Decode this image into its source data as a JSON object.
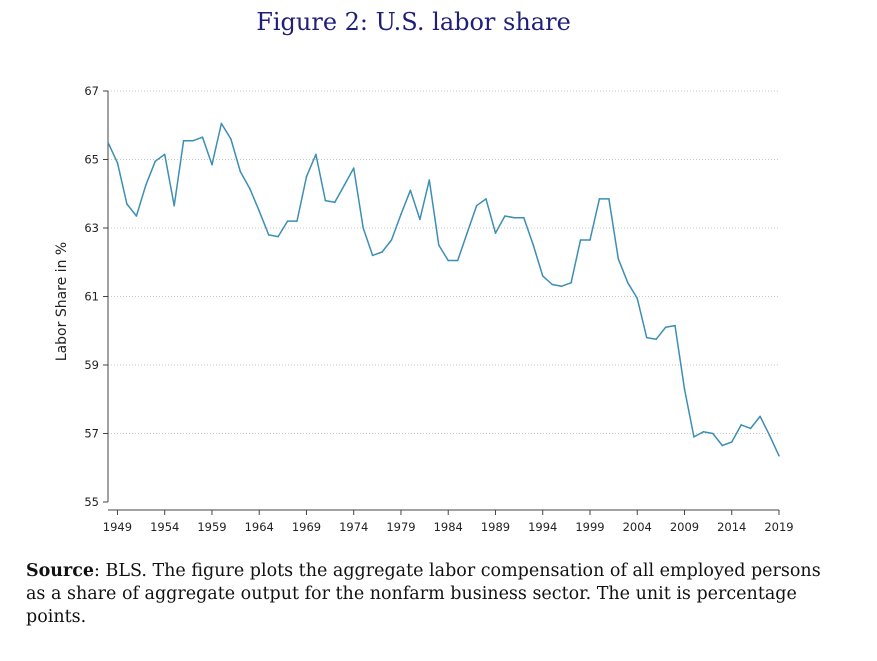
{
  "figure": {
    "title": "Figure 2: U.S. labor share"
  },
  "caption": {
    "source_label": "Source",
    "text": ": BLS. The figure plots the aggregate labor compensation of all employed persons as a share of aggregate output for the nonfarm business sector. The unit is percentage points."
  },
  "chart_data": {
    "type": "line",
    "title": "",
    "xlabel": "",
    "ylabel": "Labor Share in %",
    "xlim": [
      1948,
      2019
    ],
    "ylim": [
      55,
      67
    ],
    "x_ticks": [
      1949,
      1954,
      1959,
      1964,
      1969,
      1974,
      1979,
      1984,
      1989,
      1994,
      1999,
      2004,
      2009,
      2014,
      2019
    ],
    "y_ticks": [
      55,
      57,
      59,
      61,
      63,
      65,
      67
    ],
    "grid": true,
    "line_color": "#3d8eb5",
    "series": [
      {
        "x": [
          1948,
          1949,
          1950,
          1951,
          1952,
          1953,
          1954,
          1955,
          1956,
          1957,
          1958,
          1959,
          1960,
          1961,
          1962,
          1963,
          1964,
          1965,
          1966,
          1967,
          1968,
          1969,
          1970,
          1971,
          1972,
          1973,
          1974,
          1975,
          1976,
          1977,
          1978,
          1979,
          1980,
          1981,
          1982,
          1983,
          1984,
          1985,
          1986,
          1987,
          1988,
          1989,
          1990,
          1991,
          1992,
          1993,
          1994,
          1995,
          1996,
          1997,
          1998,
          1999,
          2000,
          2001,
          2002,
          2003,
          2004,
          2005,
          2006,
          2007,
          2008,
          2009,
          2010,
          2011,
          2012,
          2013,
          2014,
          2015,
          2016,
          2017,
          2018,
          2019
        ],
        "values": [
          65.5,
          64.9,
          63.7,
          63.35,
          64.25,
          64.95,
          65.15,
          63.65,
          65.55,
          65.55,
          65.65,
          64.85,
          66.05,
          65.6,
          64.65,
          64.15,
          63.5,
          62.8,
          62.75,
          63.2,
          63.2,
          64.5,
          65.15,
          63.8,
          63.75,
          64.25,
          64.75,
          63.0,
          62.2,
          62.3,
          62.65,
          63.4,
          64.1,
          63.25,
          64.4,
          62.5,
          62.05,
          62.05,
          62.85,
          63.65,
          63.85,
          62.85,
          63.35,
          63.3,
          63.3,
          62.5,
          61.6,
          61.35,
          61.3,
          61.4,
          62.65,
          62.65,
          63.85,
          63.85,
          62.1,
          61.4,
          60.95,
          59.8,
          59.75,
          60.1,
          60.15,
          58.3,
          56.9,
          57.05,
          57.0,
          56.65,
          56.75,
          57.25,
          57.15,
          57.5,
          56.95,
          56.35
        ]
      }
    ]
  }
}
